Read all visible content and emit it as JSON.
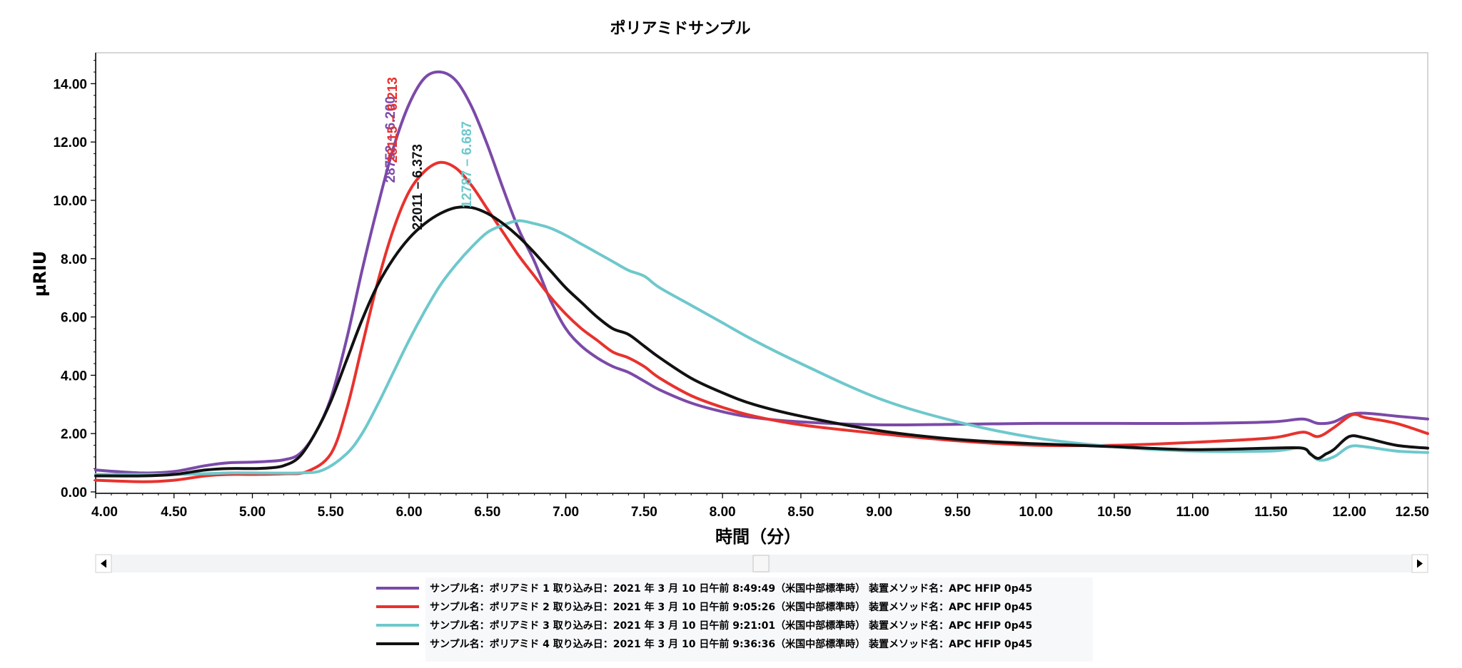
{
  "chart_data": {
    "type": "line",
    "title": "ポリアミドサンプル",
    "xlabel": "時間（分）",
    "ylabel": "µRIU",
    "xlim": [
      4.0,
      12.5
    ],
    "ylim": [
      0.0,
      15.0
    ],
    "x_ticks": [
      "4.00",
      "4.50",
      "5.00",
      "5.50",
      "6.00",
      "6.50",
      "7.00",
      "7.50",
      "8.00",
      "8.50",
      "9.00",
      "9.50",
      "10.00",
      "10.50",
      "11.00",
      "11.50",
      "12.00",
      "12.50"
    ],
    "y_ticks": [
      "0.00",
      "2.00",
      "4.00",
      "6.00",
      "8.00",
      "10.00",
      "12.00",
      "14.00"
    ],
    "legend_position": "bottom",
    "series": [
      {
        "name": "ポリアミド 1",
        "color": "#7b4aa8",
        "legend": "サンプル名：ポリアミド 1 取り込み日：2021 年 3 月 10 日午前 8:49:49（米国中部標準時） 装置メソッド名：APC HFIP 0p45",
        "annotation": "28752 – 6.200",
        "peak_x": 6.2,
        "x": [
          4.0,
          4.3,
          4.5,
          4.7,
          4.85,
          5.0,
          5.1,
          5.2,
          5.3,
          5.4,
          5.5,
          5.6,
          5.7,
          5.8,
          5.9,
          6.0,
          6.1,
          6.2,
          6.3,
          6.4,
          6.5,
          6.6,
          6.7,
          6.8,
          6.9,
          7.0,
          7.1,
          7.2,
          7.3,
          7.4,
          7.5,
          7.6,
          7.8,
          8.0,
          8.2,
          8.5,
          9.0,
          9.5,
          10.0,
          10.5,
          11.0,
          11.5,
          11.7,
          11.8,
          11.9,
          12.0,
          12.1,
          12.3,
          12.5
        ],
        "y": [
          0.75,
          0.65,
          0.7,
          0.9,
          1.0,
          1.02,
          1.05,
          1.1,
          1.3,
          2.0,
          3.2,
          5.2,
          7.6,
          9.8,
          11.8,
          13.3,
          14.2,
          14.4,
          14.1,
          13.2,
          11.9,
          10.4,
          9.0,
          7.9,
          6.6,
          5.6,
          5.0,
          4.6,
          4.3,
          4.1,
          3.8,
          3.5,
          3.05,
          2.75,
          2.55,
          2.4,
          2.3,
          2.32,
          2.35,
          2.35,
          2.35,
          2.4,
          2.5,
          2.35,
          2.4,
          2.65,
          2.7,
          2.6,
          2.5
        ]
      },
      {
        "name": "ポリアミド 2",
        "color": "#e8322e",
        "legend": "サンプル名：ポリアミド 2 取り込み日：2021 年 3 月 10 日午前 9:05:26（米国中部標準時） 装置メソッド名：APC HFIP 0p45",
        "annotation": "28115 – 6.213",
        "peak_x": 6.213,
        "x": [
          4.0,
          4.3,
          4.5,
          4.7,
          4.85,
          5.0,
          5.2,
          5.35,
          5.5,
          5.6,
          5.7,
          5.8,
          5.9,
          6.0,
          6.1,
          6.2,
          6.3,
          6.4,
          6.5,
          6.6,
          6.7,
          6.8,
          6.9,
          7.0,
          7.1,
          7.2,
          7.3,
          7.4,
          7.5,
          7.6,
          7.8,
          8.0,
          8.2,
          8.5,
          9.0,
          9.5,
          10.0,
          10.5,
          11.0,
          11.5,
          11.7,
          11.8,
          11.9,
          12.0,
          12.05,
          12.1,
          12.3,
          12.5
        ],
        "y": [
          0.4,
          0.35,
          0.4,
          0.55,
          0.6,
          0.6,
          0.62,
          0.7,
          1.3,
          2.8,
          5.0,
          7.2,
          9.0,
          10.3,
          11.0,
          11.3,
          11.1,
          10.5,
          9.7,
          8.9,
          8.1,
          7.4,
          6.7,
          6.1,
          5.6,
          5.2,
          4.8,
          4.6,
          4.3,
          3.9,
          3.3,
          2.9,
          2.6,
          2.3,
          2.0,
          1.75,
          1.6,
          1.6,
          1.7,
          1.85,
          2.05,
          1.9,
          2.2,
          2.6,
          2.65,
          2.55,
          2.35,
          2.0
        ]
      },
      {
        "name": "ポリアミド 3",
        "color": "#6ec8cc",
        "legend": "サンプル名：ポリアミド 3 取り込み日：2021 年 3 月 10 日午前 9:21:01（米国中部標準時） 装置メソッド名：APC HFIP 0p45",
        "annotation": "12787 – 6.687",
        "peak_x": 6.687,
        "x": [
          4.0,
          4.5,
          4.85,
          5.0,
          5.3,
          5.45,
          5.6,
          5.7,
          5.8,
          5.9,
          6.0,
          6.1,
          6.2,
          6.3,
          6.4,
          6.5,
          6.6,
          6.7,
          6.8,
          6.9,
          7.0,
          7.1,
          7.2,
          7.3,
          7.4,
          7.5,
          7.6,
          7.8,
          8.0,
          8.2,
          8.5,
          9.0,
          9.5,
          10.0,
          10.5,
          11.0,
          11.5,
          11.7,
          11.8,
          11.9,
          12.0,
          12.1,
          12.3,
          12.5
        ],
        "y": [
          0.6,
          0.6,
          0.65,
          0.65,
          0.65,
          0.75,
          1.3,
          2.0,
          3.0,
          4.1,
          5.2,
          6.2,
          7.1,
          7.8,
          8.4,
          8.9,
          9.15,
          9.3,
          9.2,
          9.05,
          8.8,
          8.5,
          8.2,
          7.9,
          7.6,
          7.4,
          7.0,
          6.4,
          5.8,
          5.2,
          4.4,
          3.2,
          2.4,
          1.85,
          1.55,
          1.4,
          1.4,
          1.5,
          1.1,
          1.2,
          1.55,
          1.55,
          1.4,
          1.35
        ]
      },
      {
        "name": "ポリアミド 4",
        "color": "#111111",
        "legend": "サンプル名：ポリアミド 4 取り込み日：2021 年 3 月 10 日午前 9:36:36（米国中部標準時） 装置メソッド名：APC HFIP 0p45",
        "annotation": "22011 – 6.373",
        "peak_x": 6.373,
        "x": [
          4.0,
          4.3,
          4.5,
          4.7,
          4.85,
          5.0,
          5.1,
          5.2,
          5.3,
          5.4,
          5.5,
          5.6,
          5.7,
          5.8,
          5.9,
          6.0,
          6.1,
          6.2,
          6.3,
          6.4,
          6.5,
          6.6,
          6.7,
          6.8,
          6.9,
          7.0,
          7.1,
          7.2,
          7.3,
          7.4,
          7.5,
          7.6,
          7.8,
          8.0,
          8.2,
          8.5,
          9.0,
          9.5,
          10.0,
          10.5,
          11.0,
          11.5,
          11.7,
          11.75,
          11.8,
          11.85,
          11.9,
          12.0,
          12.1,
          12.3,
          12.5
        ],
        "y": [
          0.55,
          0.55,
          0.6,
          0.75,
          0.8,
          0.8,
          0.82,
          0.9,
          1.2,
          2.0,
          3.1,
          4.5,
          5.9,
          7.1,
          8.0,
          8.7,
          9.2,
          9.55,
          9.75,
          9.75,
          9.55,
          9.2,
          8.75,
          8.2,
          7.6,
          7.0,
          6.5,
          6.0,
          5.6,
          5.4,
          5.0,
          4.6,
          3.9,
          3.4,
          3.0,
          2.6,
          2.1,
          1.8,
          1.65,
          1.55,
          1.45,
          1.5,
          1.5,
          1.3,
          1.15,
          1.3,
          1.45,
          1.9,
          1.85,
          1.6,
          1.5
        ]
      }
    ]
  }
}
